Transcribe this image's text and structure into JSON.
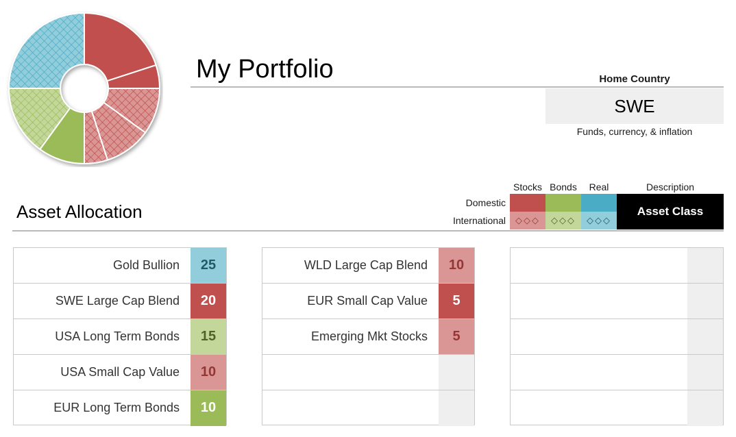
{
  "header": {
    "title": "My Portfolio"
  },
  "home_country": {
    "label": "Home Country",
    "value": "SWE",
    "note": "Funds, currency, & inflation"
  },
  "asset_allocation": {
    "title": "Asset Allocation"
  },
  "legend": {
    "columns": [
      "Stocks",
      "Bonds",
      "Real",
      "Description"
    ],
    "rows": [
      "Domestic",
      "International"
    ],
    "description_label": "Asset Class",
    "intl_marker": "◇◇◇",
    "colors": {
      "stocks_domestic": "#c0504d",
      "stocks_intl": "#da9694",
      "bonds_domestic": "#9bbb59",
      "bonds_intl": "#c4d79b",
      "real_domestic": "#4bacc6",
      "real_intl": "#92cddc"
    }
  },
  "tables": [
    {
      "rows": [
        {
          "name": "Gold Bullion",
          "value": "25",
          "bg": "#92cddc",
          "fg": "#215967"
        },
        {
          "name": "SWE Large Cap Blend",
          "value": "20",
          "bg": "#c0504d",
          "fg": "#ffffff"
        },
        {
          "name": "USA Long Term Bonds",
          "value": "15",
          "bg": "#c4d79b",
          "fg": "#4f6228"
        },
        {
          "name": "USA Small Cap Value",
          "value": "10",
          "bg": "#da9694",
          "fg": "#963634"
        },
        {
          "name": "EUR Long Term Bonds",
          "value": "10",
          "bg": "#9bbb59",
          "fg": "#ffffff"
        }
      ]
    },
    {
      "rows": [
        {
          "name": "WLD Large Cap Blend",
          "value": "10",
          "bg": "#da9694",
          "fg": "#963634"
        },
        {
          "name": "EUR Small Cap Value",
          "value": "5",
          "bg": "#c0504d",
          "fg": "#ffffff"
        },
        {
          "name": "Emerging Mkt Stocks",
          "value": "5",
          "bg": "#da9694",
          "fg": "#963634"
        },
        {
          "name": "",
          "value": ""
        },
        {
          "name": "",
          "value": ""
        }
      ]
    },
    {
      "rows": [
        {
          "name": "",
          "value": ""
        },
        {
          "name": "",
          "value": ""
        },
        {
          "name": "",
          "value": ""
        },
        {
          "name": "",
          "value": ""
        },
        {
          "name": "",
          "value": ""
        }
      ]
    }
  ],
  "chart_data": {
    "type": "pie",
    "donut": true,
    "categories": [
      "SWE Large Cap Blend",
      "EUR Small Cap Value",
      "WLD Large Cap Blend",
      "USA Small Cap Value",
      "Emerging Mkt Stocks",
      "EUR Long Term Bonds",
      "USA Long Term Bonds",
      "Gold Bullion"
    ],
    "values": [
      20,
      5,
      10,
      10,
      5,
      10,
      15,
      25
    ],
    "colors": [
      "#c0504d",
      "#c0504d",
      "#da9694",
      "#da9694",
      "#da9694",
      "#9bbb59",
      "#c4d79b",
      "#92cddc"
    ],
    "hatched": [
      false,
      false,
      true,
      true,
      true,
      false,
      true,
      true
    ]
  }
}
